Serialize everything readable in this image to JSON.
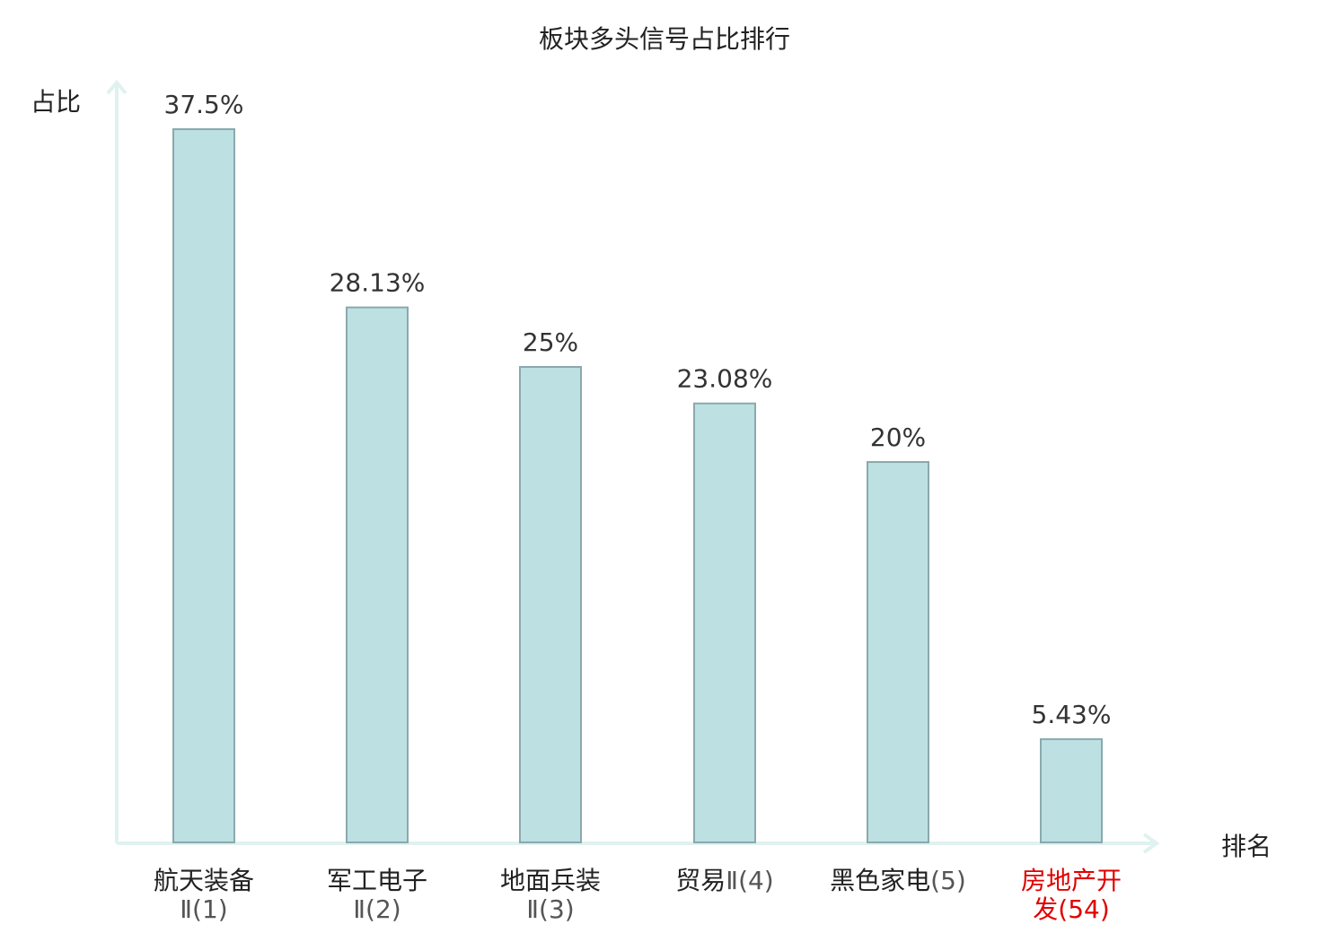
{
  "chart_data": {
    "type": "bar",
    "title": "板块多头信号占比排行",
    "ylabel": "占比",
    "xlabel": "排名",
    "ylim": [
      0,
      40
    ],
    "categories": [
      {
        "name": "航天装备",
        "suffix": "Ⅱ(1)",
        "highlight": false
      },
      {
        "name": "军工电子",
        "suffix": "Ⅱ(2)",
        "highlight": false
      },
      {
        "name": "地面兵装",
        "suffix": "Ⅱ(3)",
        "highlight": false
      },
      {
        "name": "贸易",
        "suffix": "Ⅱ(4)",
        "highlight": false
      },
      {
        "name": "黑色家电",
        "suffix": "(5)",
        "highlight": false
      },
      {
        "name": "房地产开发",
        "suffix": "(54)",
        "highlight": true
      }
    ],
    "values": [
      37.5,
      28.13,
      25,
      23.08,
      20,
      5.43
    ],
    "value_labels": [
      "37.5%",
      "28.13%",
      "25%",
      "23.08%",
      "20%",
      "5.43%"
    ],
    "grid": false,
    "colors": {
      "bar_fill": "#bde0e3",
      "bar_stroke": "#8aa9ad",
      "axis": "#dff2ef",
      "highlight_text": "#e00000"
    }
  }
}
